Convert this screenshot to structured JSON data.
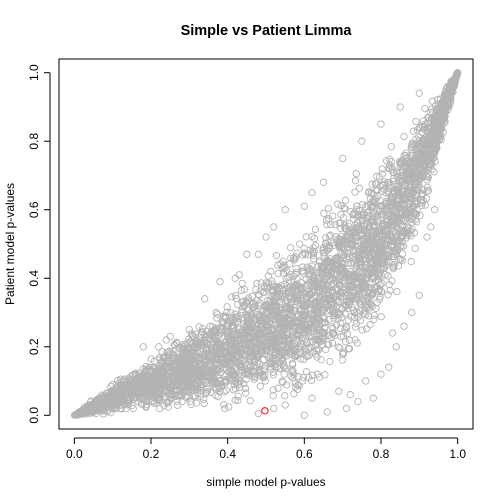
{
  "chart_data": {
    "type": "scatter",
    "title": "Simple vs Patient Limma",
    "xlabel": "simple model p-values",
    "ylabel": "Patient model p-values",
    "xlim": [
      -0.04,
      1.04
    ],
    "ylim": [
      -0.04,
      1.04
    ],
    "x_ticks": [
      "0.0",
      "0.2",
      "0.4",
      "0.6",
      "0.8",
      "1.0"
    ],
    "y_ticks": [
      "0.0",
      "0.2",
      "0.4",
      "0.6",
      "0.8",
      "1.0"
    ],
    "grid": false,
    "legend": "none",
    "colors": {
      "points": "#b3b3b3",
      "highlight": "#ff0000"
    },
    "series": [
      {
        "marker": "open-circle",
        "color": "#b3b3b3",
        "distribution": {
          "point_count": 4200,
          "lower_boundary": [
            [
              0.0,
              0.0
            ],
            [
              0.2,
              0.0
            ],
            [
              0.4,
              0.0
            ],
            [
              0.6,
              0.02
            ],
            [
              0.8,
              0.2
            ],
            [
              0.9,
              0.5
            ],
            [
              1.0,
              1.0
            ]
          ],
          "upper_boundary": [
            [
              0.0,
              0.0
            ],
            [
              0.1,
              0.1
            ],
            [
              0.3,
              0.27
            ],
            [
              0.5,
              0.46
            ],
            [
              0.7,
              0.69
            ],
            [
              0.85,
              0.86
            ],
            [
              1.0,
              1.0
            ]
          ],
          "outliers": [
            [
              0.03,
              0.01
            ],
            [
              0.05,
              0.015
            ],
            [
              0.07,
              0.04
            ],
            [
              0.09,
              0.05
            ],
            [
              0.1,
              0.09
            ],
            [
              0.12,
              0.07
            ],
            [
              0.13,
              0.1
            ],
            [
              0.15,
              0.1
            ],
            [
              0.16,
              0.12
            ],
            [
              0.18,
              0.2
            ],
            [
              0.22,
              0.2
            ],
            [
              0.24,
              0.22
            ],
            [
              0.25,
              0.23
            ],
            [
              0.3,
              0.25
            ],
            [
              0.34,
              0.34
            ],
            [
              0.37,
              0.3
            ],
            [
              0.38,
              0.39
            ],
            [
              0.42,
              0.4
            ],
            [
              0.43,
              0.41
            ],
            [
              0.45,
              0.47
            ],
            [
              0.48,
              0.47
            ],
            [
              0.5,
              0.52
            ],
            [
              0.52,
              0.55
            ],
            [
              0.55,
              0.6
            ],
            [
              0.6,
              0.61
            ],
            [
              0.62,
              0.65
            ],
            [
              0.65,
              0.68
            ],
            [
              0.7,
              0.75
            ],
            [
              0.75,
              0.8
            ],
            [
              0.8,
              0.85
            ],
            [
              0.85,
              0.9
            ],
            [
              0.9,
              0.94
            ],
            [
              0.48,
              0.005
            ],
            [
              0.52,
              0.02
            ],
            [
              0.55,
              0.03
            ],
            [
              0.6,
              0.0
            ],
            [
              0.62,
              0.05
            ],
            [
              0.66,
              0.01
            ],
            [
              0.69,
              0.07
            ],
            [
              0.71,
              0.02
            ],
            [
              0.72,
              0.06
            ],
            [
              0.74,
              0.04
            ],
            [
              0.76,
              0.1
            ],
            [
              0.78,
              0.05
            ],
            [
              0.8,
              0.12
            ],
            [
              0.82,
              0.14
            ],
            [
              0.83,
              0.24
            ],
            [
              0.84,
              0.2
            ],
            [
              0.86,
              0.26
            ],
            [
              0.88,
              0.3
            ],
            [
              0.9,
              0.35
            ],
            [
              0.92,
              0.52
            ],
            [
              0.93,
              0.55
            ],
            [
              0.94,
              0.6
            ]
          ]
        }
      },
      {
        "marker": "open-circle",
        "color": "#ff0000",
        "points": [
          {
            "x": 0.497,
            "y": 0.013
          }
        ]
      }
    ]
  }
}
